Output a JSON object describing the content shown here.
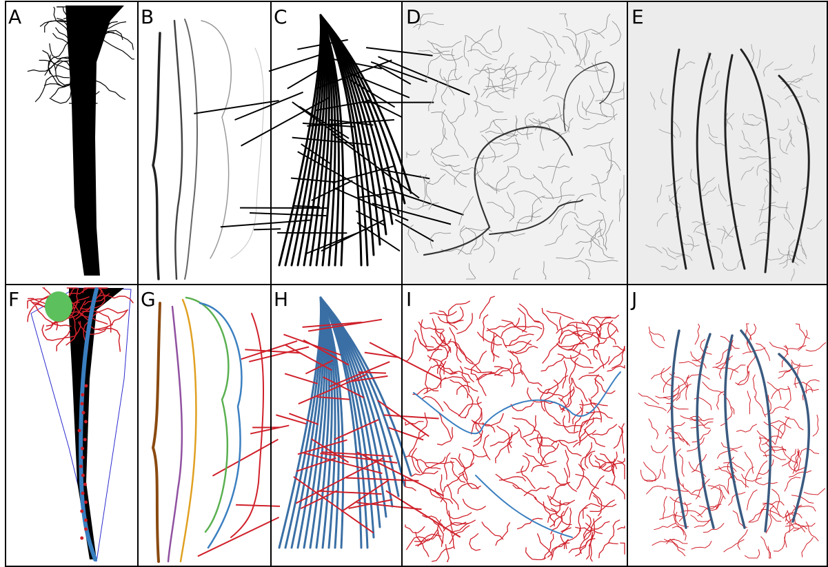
{
  "panels": [
    {
      "label": "A"
    },
    {
      "label": "B"
    },
    {
      "label": "C"
    },
    {
      "label": "D"
    },
    {
      "label": "E"
    },
    {
      "label": "F"
    },
    {
      "label": "G"
    },
    {
      "label": "H"
    },
    {
      "label": "I"
    },
    {
      "label": "J"
    }
  ]
}
